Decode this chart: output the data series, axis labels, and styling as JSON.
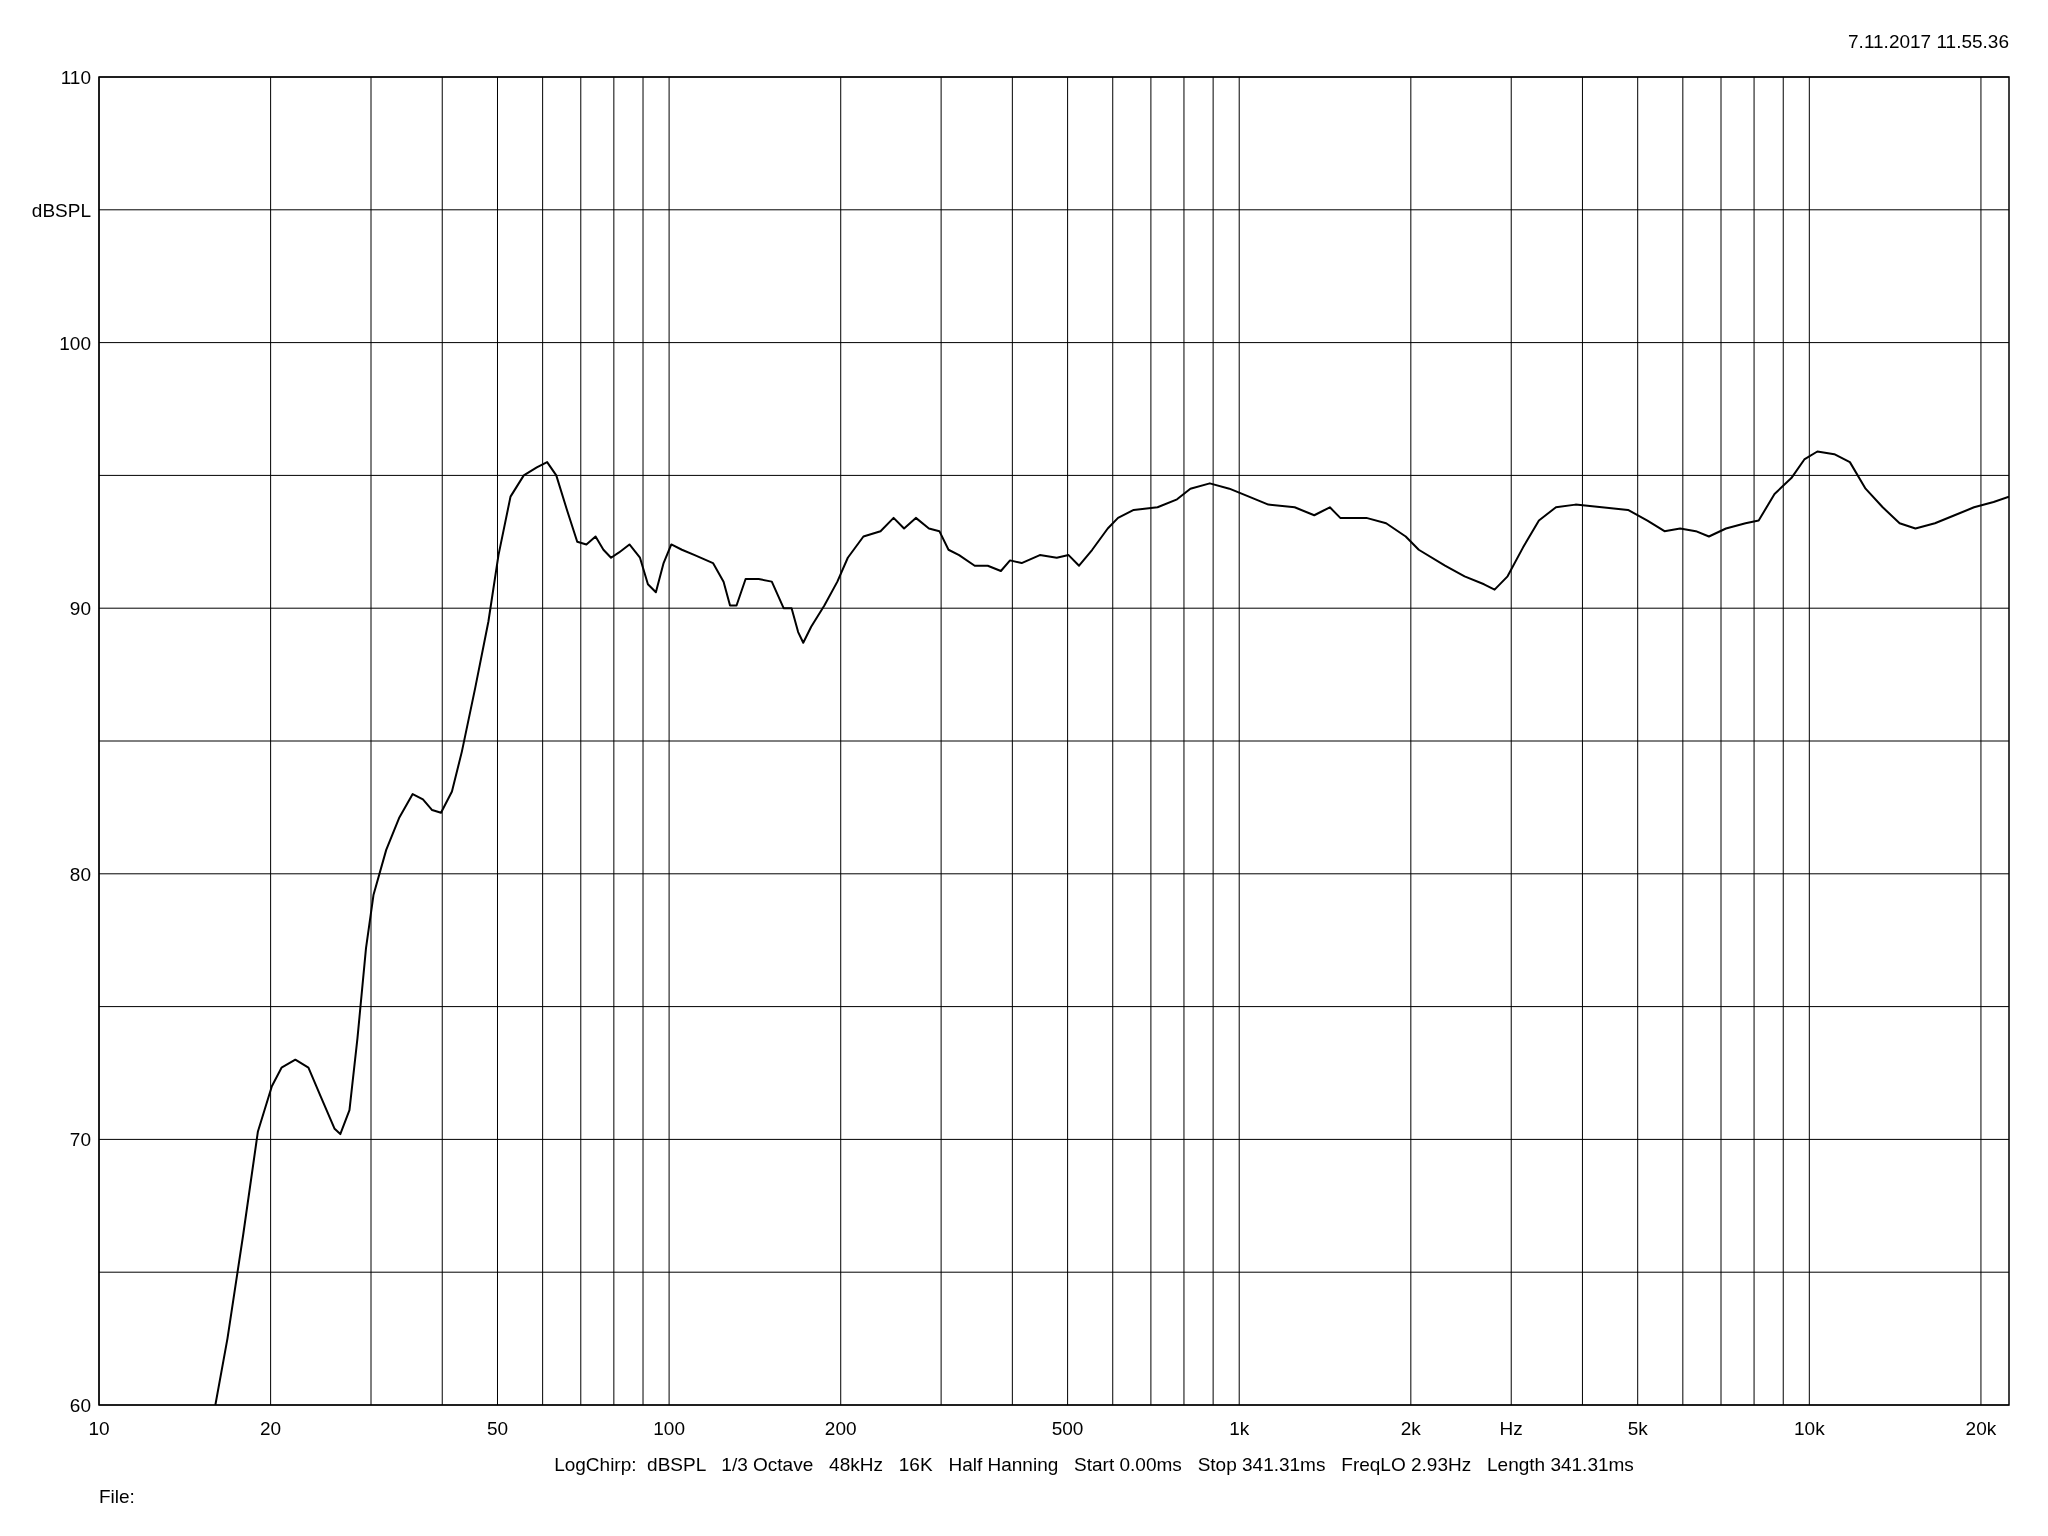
{
  "chart_data": {
    "type": "line",
    "xlabel": "Hz",
    "ylabel": "dBSPL",
    "log": "x",
    "grid": true,
    "xlim": [
      10,
      22400
    ],
    "ylim": [
      60,
      110
    ],
    "xticks": [
      10,
      20,
      {
        "value": 30,
        "label": null
      },
      {
        "value": 40,
        "label": null
      },
      50,
      {
        "value": 60,
        "label": null
      },
      {
        "value": 70,
        "label": null
      },
      {
        "value": 80,
        "label": null
      },
      {
        "value": 90,
        "label": null
      },
      100,
      200,
      {
        "value": 300,
        "label": null
      },
      {
        "value": 400,
        "label": null
      },
      500,
      {
        "value": 600,
        "label": null
      },
      {
        "value": 700,
        "label": null
      },
      {
        "value": 800,
        "label": null
      },
      {
        "value": 900,
        "label": null
      },
      {
        "value": 1000,
        "label": "1k"
      },
      {
        "value": 2000,
        "label": "2k"
      },
      {
        "value": 3000,
        "label": null
      },
      {
        "value": 4000,
        "label": null
      },
      {
        "value": 5000,
        "label": "5k"
      },
      {
        "value": 6000,
        "label": null
      },
      {
        "value": 7000,
        "label": null
      },
      {
        "value": 8000,
        "label": null
      },
      {
        "value": 9000,
        "label": null
      },
      {
        "value": 10000,
        "label": "10k"
      },
      {
        "value": 20000,
        "label": "20k"
      }
    ],
    "yticks": [
      60,
      {
        "value": 65,
        "label": null
      },
      70,
      {
        "value": 75,
        "label": null
      },
      80,
      {
        "value": 85,
        "label": null
      },
      90,
      {
        "value": 95,
        "label": null
      },
      100,
      {
        "value": 105,
        "label": null
      },
      110
    ],
    "annotations": [
      "7.11.2017 11.55.36",
      "LogChirp:  dBSPL   1/3 Octave   48kHz   16K   Half Hanning   Start 0.00ms   Stop 341.31ms   FreqLO 2.93Hz   Length 341.31ms",
      "File:"
    ],
    "series": [
      {
        "color": "#000000",
        "x": [
          16.0,
          16.8,
          17.9,
          19.0,
          20.1,
          20.9,
          22.1,
          23.3,
          24.5,
          25.9,
          26.5,
          27.5,
          28.4,
          29.4,
          30.3,
          31.9,
          33.6,
          35.5,
          37.0,
          38.4,
          39.8,
          41.6,
          43.3,
          45.7,
          48.2,
          50.2,
          52.7,
          55.6,
          58.6,
          61.1,
          63.4,
          66.2,
          69.0,
          71.6,
          74.3,
          76.7,
          79.1,
          81.7,
          85.2,
          88.9,
          91.8,
          94.8,
          97.8,
          100.9,
          105.3,
          110.9,
          119.4,
          124.6,
          127.9,
          131.3,
          136.2,
          143.6,
          151.4,
          158.8,
          164.0,
          168.4,
          171.9,
          177.5,
          187.2,
          197.3,
          205.8,
          219.2,
          234.9,
          247.6,
          258.3,
          270.9,
          285.6,
          297.9,
          309.1,
          322.6,
          343.6,
          362.2,
          381.9,
          396.3,
          415.3,
          447,
          478.6,
          502,
          523.7,
          552.3,
          588,
          613,
          653,
          719,
          778,
          821,
          888,
          961,
          1040,
          1125,
          1251,
          1354,
          1442,
          1504,
          1671,
          1810,
          1959,
          2065,
          2296,
          2485,
          2688,
          2805,
          2956,
          3149,
          3355,
          3594,
          3890,
          4326,
          4808,
          5200,
          5571,
          5935,
          6323,
          6667,
          7141,
          7729,
          8150,
          8689,
          9300,
          9800,
          10330,
          11060,
          11780,
          12550,
          13450,
          14400,
          15350,
          16610,
          17980,
          19450,
          21050,
          22400
        ],
        "values": [
          60,
          62.5,
          66.4,
          70.3,
          72.0,
          72.7,
          73.0,
          72.7,
          71.6,
          70.4,
          70.2,
          71.1,
          73.8,
          77.2,
          79.2,
          80.9,
          82.1,
          83.0,
          82.8,
          82.4,
          82.3,
          83.1,
          84.6,
          87.0,
          89.5,
          92.0,
          94.2,
          95.0,
          95.3,
          95.5,
          95.0,
          93.7,
          92.5,
          92.4,
          92.7,
          92.2,
          91.9,
          92.1,
          92.4,
          91.9,
          90.9,
          90.6,
          91.7,
          92.4,
          92.2,
          92.0,
          91.7,
          91.0,
          90.1,
          90.1,
          91.1,
          91.1,
          91.0,
          90.0,
          90.0,
          89.1,
          88.7,
          89.3,
          90.1,
          91.0,
          91.9,
          92.7,
          92.9,
          93.4,
          93.0,
          93.4,
          93.0,
          92.9,
          92.2,
          92.0,
          91.6,
          91.6,
          91.4,
          91.8,
          91.7,
          92.0,
          91.9,
          92.0,
          91.6,
          92.2,
          93.0,
          93.4,
          93.7,
          93.8,
          94.1,
          94.5,
          94.7,
          94.5,
          94.2,
          93.9,
          93.8,
          93.5,
          93.8,
          93.4,
          93.4,
          93.2,
          92.7,
          92.2,
          91.6,
          91.2,
          90.9,
          90.7,
          91.2,
          92.3,
          93.3,
          93.8,
          93.9,
          93.8,
          93.7,
          93.3,
          92.9,
          93.0,
          92.9,
          92.7,
          93.0,
          93.2,
          93.3,
          94.3,
          94.9,
          95.6,
          95.9,
          95.8,
          95.5,
          94.5,
          93.8,
          93.2,
          93.0,
          93.2,
          93.5,
          93.8,
          94.0,
          94.2
        ]
      }
    ]
  }
}
